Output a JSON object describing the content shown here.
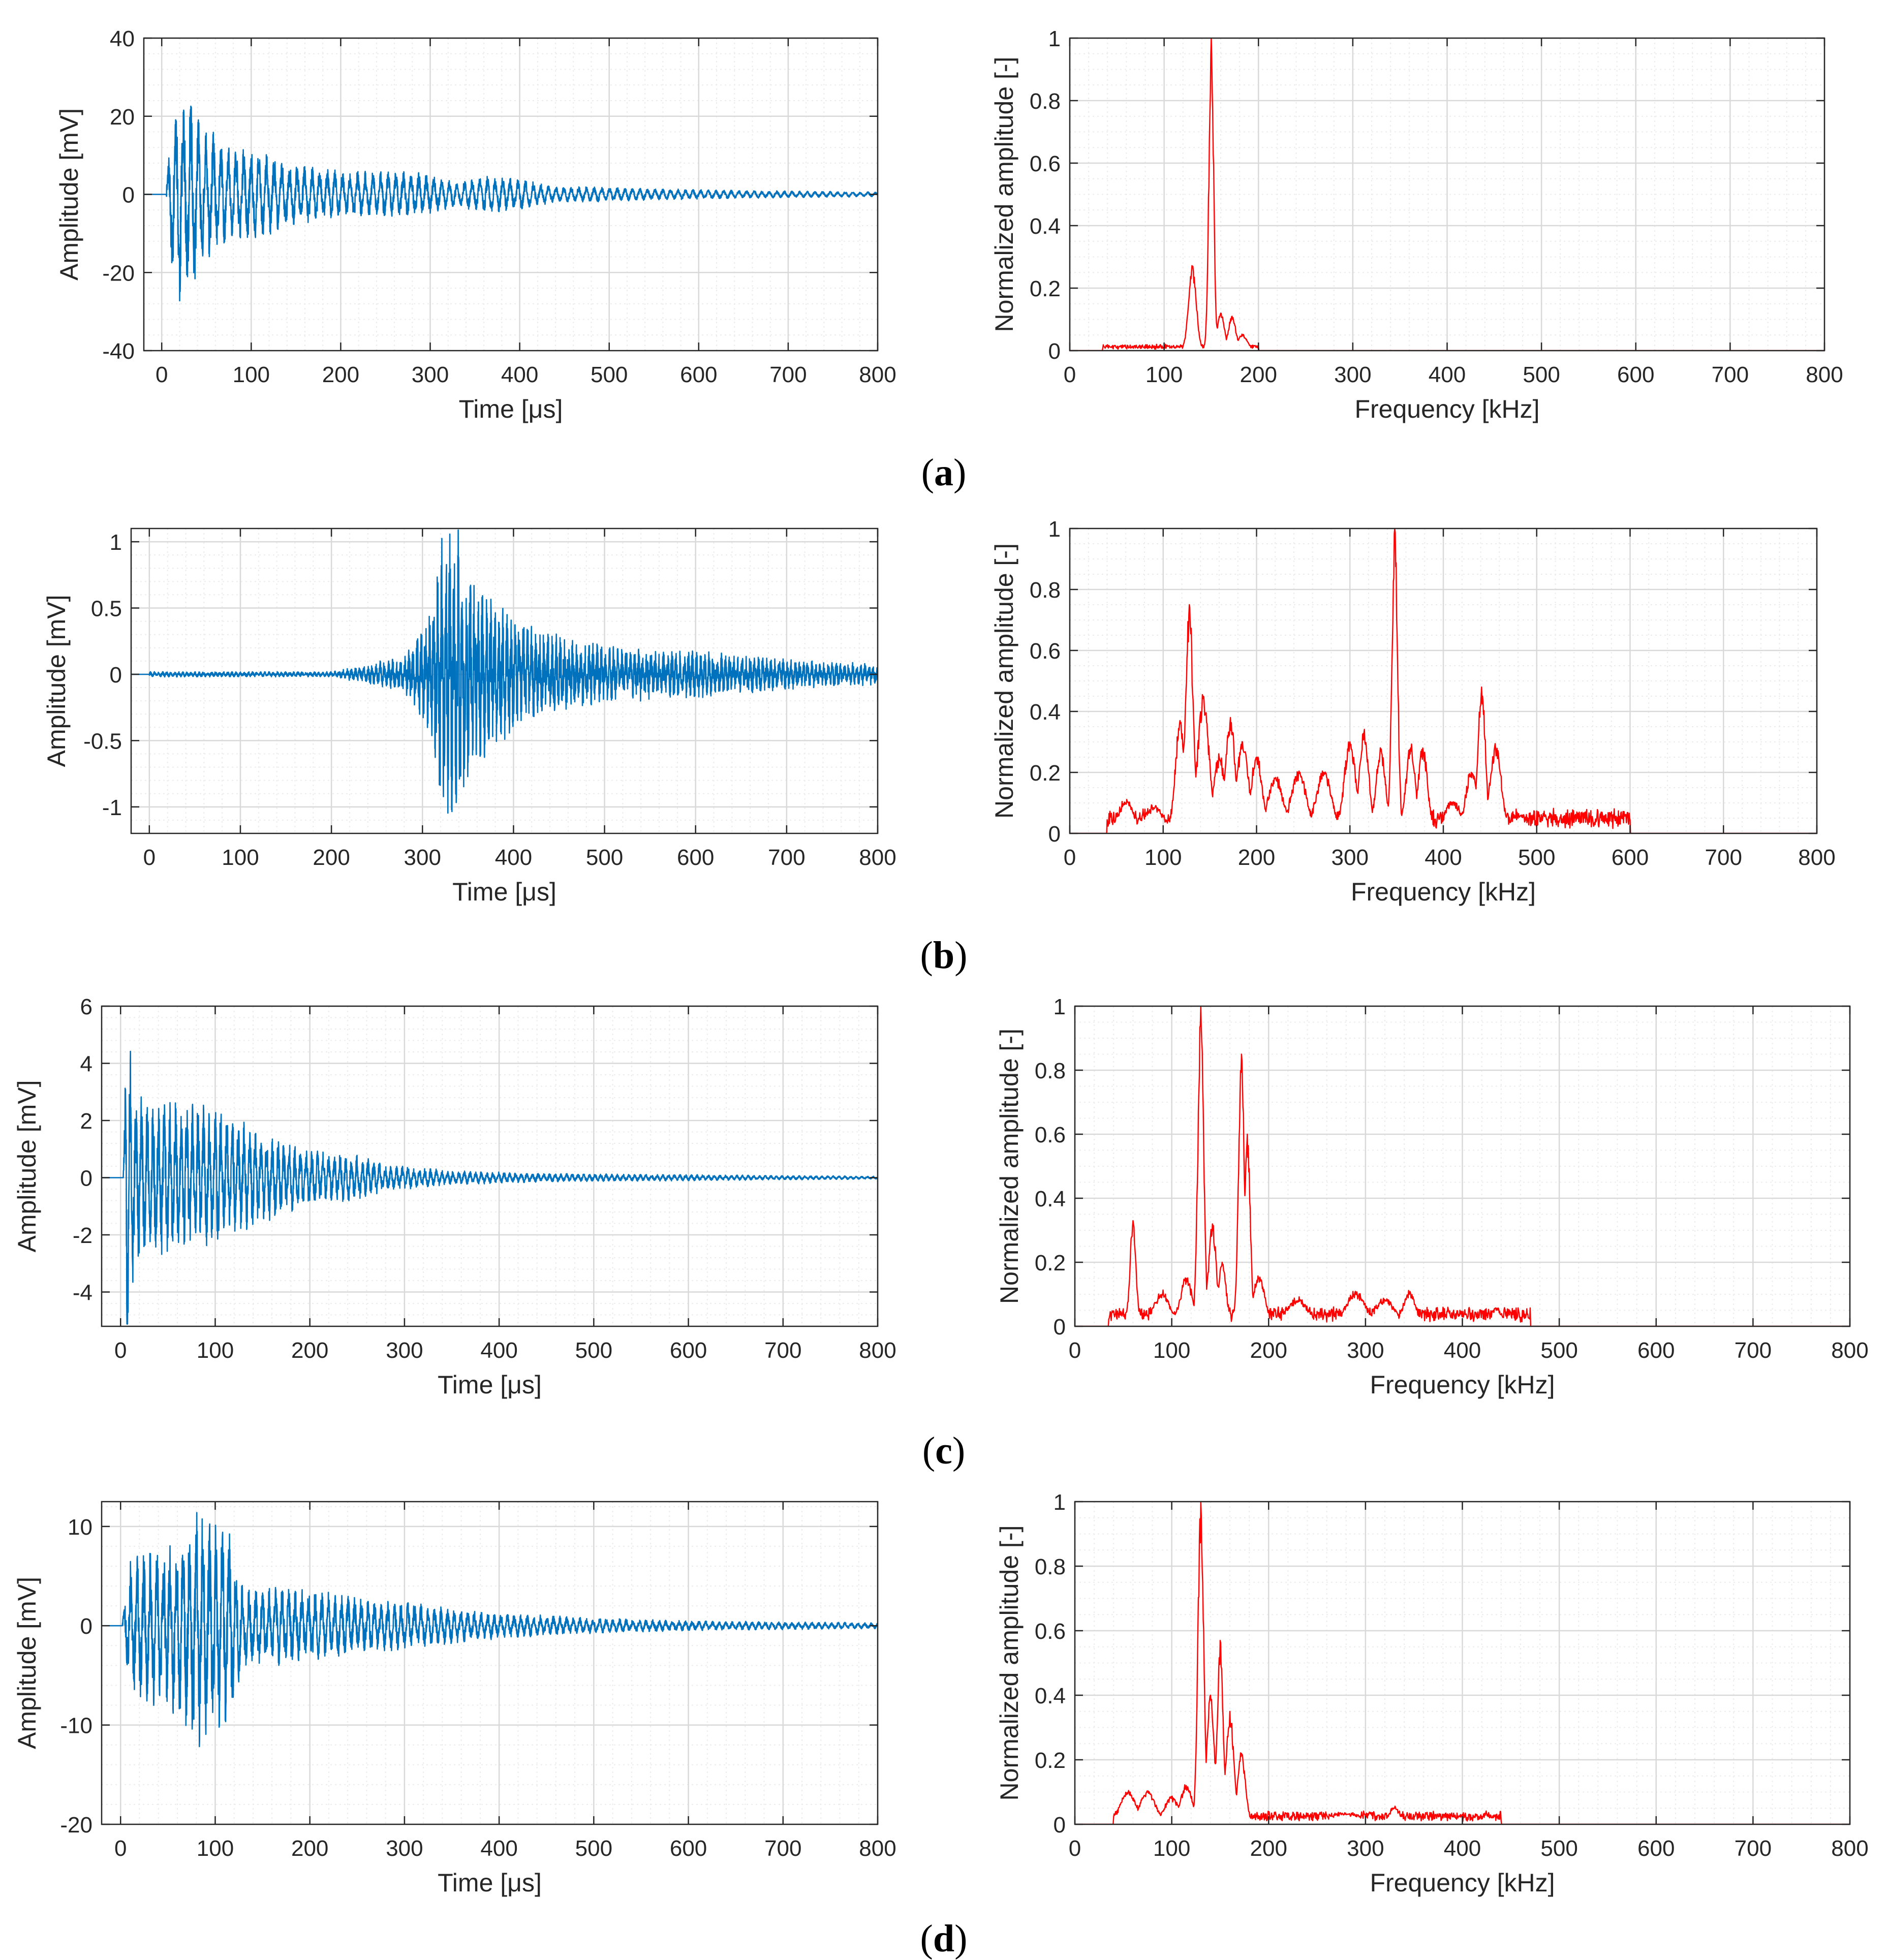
{
  "figure": {
    "colors": {
      "signal": "#0072BD",
      "spectrum": "#FF0000",
      "axis": "#262626",
      "grid_major": "#d9d9d9",
      "grid_minor": "#ececec"
    },
    "captions": [
      "a",
      "b",
      "c",
      "d"
    ]
  },
  "chart_data": [
    {
      "id": "a-time",
      "type": "line",
      "panel": "a",
      "side": "left",
      "xlabel": "Time [μs]",
      "ylabel": "Amplitude [mV]",
      "xlim": [
        -20,
        800
      ],
      "ylim": [
        -40,
        40
      ],
      "xticks": [
        0,
        100,
        200,
        300,
        400,
        500,
        600,
        700,
        800
      ],
      "yticks": [
        -40,
        -20,
        0,
        20,
        40
      ],
      "ytick_labels": [
        "-40",
        "-20",
        "0",
        "20",
        "40"
      ],
      "series": [
        {
          "name": "signal",
          "color": "#0072BD",
          "onset": 5,
          "period": 8.5,
          "noise": 0.35,
          "seed": 11,
          "envelope": [
            [
              0,
              0
            ],
            [
              5,
              3
            ],
            [
              12,
              22
            ],
            [
              20,
              29
            ],
            [
              30,
              27
            ],
            [
              45,
              18
            ],
            [
              70,
              14
            ],
            [
              100,
              12
            ],
            [
              150,
              8
            ],
            [
              200,
              6
            ],
            [
              250,
              6
            ],
            [
              280,
              6
            ],
            [
              300,
              5
            ],
            [
              330,
              3
            ],
            [
              360,
              5
            ],
            [
              400,
              4
            ],
            [
              440,
              2
            ],
            [
              480,
              2
            ],
            [
              550,
              1.5
            ],
            [
              650,
              1
            ],
            [
              800,
              0.6
            ]
          ]
        }
      ]
    },
    {
      "id": "a-freq",
      "type": "line",
      "panel": "a",
      "side": "right",
      "xlabel": "Frequency [kHz]",
      "ylabel": "Normalized amplitude [-]",
      "xlim": [
        0,
        800
      ],
      "ylim": [
        0,
        1
      ],
      "xticks": [
        0,
        100,
        200,
        300,
        400,
        500,
        600,
        700,
        800
      ],
      "yticks": [
        0,
        0.2,
        0.4,
        0.6,
        0.8,
        1
      ],
      "ytick_labels": [
        "0",
        "0.2",
        "0.4",
        "0.6",
        "0.8",
        "1"
      ],
      "series": [
        {
          "name": "spectrum",
          "color": "#FF0000",
          "band": [
            35,
            200
          ],
          "floor": 0.01,
          "seed": 21,
          "peaks": [
            [
              130,
              0.27,
              4
            ],
            [
              150,
              1.0,
              2.5
            ],
            [
              160,
              0.12,
              4
            ],
            [
              172,
              0.11,
              4
            ],
            [
              183,
              0.05,
              5
            ]
          ]
        }
      ]
    },
    {
      "id": "b-time",
      "type": "line",
      "panel": "b",
      "side": "left",
      "xlabel": "Time [μs]",
      "ylabel": "Amplitude [mV]",
      "xlim": [
        -20,
        800
      ],
      "ylim": [
        -1.2,
        1.1
      ],
      "xticks": [
        0,
        100,
        200,
        300,
        400,
        500,
        600,
        700,
        800
      ],
      "yticks": [
        -1,
        -0.5,
        0,
        0.5,
        1
      ],
      "ytick_labels": [
        "-1",
        "-0.5",
        "0",
        "0.5",
        "1"
      ],
      "series": [
        {
          "name": "signal",
          "color": "#0072BD",
          "onset": 0,
          "period": 4.5,
          "noise": 0.55,
          "seed": 31,
          "envelope": [
            [
              0,
              0.02
            ],
            [
              200,
              0.02
            ],
            [
              230,
              0.06
            ],
            [
              280,
              0.15
            ],
            [
              310,
              0.5
            ],
            [
              320,
              1.1
            ],
            [
              340,
              1.1
            ],
            [
              360,
              0.7
            ],
            [
              400,
              0.45
            ],
            [
              450,
              0.3
            ],
            [
              500,
              0.22
            ],
            [
              600,
              0.18
            ],
            [
              700,
              0.12
            ],
            [
              800,
              0.08
            ]
          ]
        }
      ]
    },
    {
      "id": "b-freq",
      "type": "line",
      "panel": "b",
      "side": "right",
      "xlabel": "Frequency [kHz]",
      "ylabel": "Normalized amplitude [-]",
      "xlim": [
        0,
        800
      ],
      "ylim": [
        0,
        1
      ],
      "xticks": [
        0,
        100,
        200,
        300,
        400,
        500,
        600,
        700,
        800
      ],
      "yticks": [
        0,
        0.2,
        0.4,
        0.6,
        0.8,
        1
      ],
      "ytick_labels": [
        "0",
        "0.2",
        "0.4",
        "0.6",
        "0.8",
        "1"
      ],
      "series": [
        {
          "name": "spectrum",
          "color": "#FF0000",
          "band": [
            40,
            600
          ],
          "floor": 0.04,
          "seed": 41,
          "peaks": [
            [
              60,
              0.1,
              8
            ],
            [
              90,
              0.08,
              10
            ],
            [
              118,
              0.37,
              5
            ],
            [
              128,
              0.75,
              4
            ],
            [
              143,
              0.45,
              6
            ],
            [
              160,
              0.25,
              6
            ],
            [
              172,
              0.38,
              5
            ],
            [
              185,
              0.3,
              6
            ],
            [
              200,
              0.25,
              6
            ],
            [
              220,
              0.18,
              8
            ],
            [
              245,
              0.2,
              8
            ],
            [
              272,
              0.2,
              8
            ],
            [
              300,
              0.3,
              6
            ],
            [
              315,
              0.33,
              5
            ],
            [
              333,
              0.27,
              5
            ],
            [
              348,
              1.0,
              3
            ],
            [
              365,
              0.28,
              5
            ],
            [
              378,
              0.28,
              5
            ],
            [
              410,
              0.1,
              8
            ],
            [
              430,
              0.2,
              6
            ],
            [
              441,
              0.48,
              4
            ],
            [
              456,
              0.28,
              6
            ],
            [
              480,
              0.05,
              10
            ]
          ]
        }
      ]
    },
    {
      "id": "c-time",
      "type": "line",
      "panel": "c",
      "side": "left",
      "xlabel": "Time [μs]",
      "ylabel": "Amplitude [mV]",
      "xlim": [
        -20,
        800
      ],
      "ylim": [
        -5.2,
        6
      ],
      "xticks": [
        0,
        100,
        200,
        300,
        400,
        500,
        600,
        700,
        800
      ],
      "yticks": [
        -4,
        -2,
        0,
        2,
        4,
        6
      ],
      "ytick_labels": [
        "-4",
        "-2",
        "0",
        "2",
        "4",
        "6"
      ],
      "series": [
        {
          "name": "signal",
          "color": "#0072BD",
          "onset": 3,
          "period": 6,
          "noise": 0.4,
          "seed": 51,
          "envelope": [
            [
              0,
              0
            ],
            [
              3,
              0.5
            ],
            [
              6,
              6
            ],
            [
              10,
              5
            ],
            [
              15,
              3
            ],
            [
              40,
              2.8
            ],
            [
              100,
              2.6
            ],
            [
              150,
              1.6
            ],
            [
              200,
              1.0
            ],
            [
              250,
              0.8
            ],
            [
              280,
              0.5
            ],
            [
              350,
              0.25
            ],
            [
              450,
              0.15
            ],
            [
              800,
              0.05
            ]
          ]
        }
      ]
    },
    {
      "id": "c-freq",
      "type": "line",
      "panel": "c",
      "side": "right",
      "xlabel": "Frequency [kHz]",
      "ylabel": "Normalized amplitude [-]",
      "xlim": [
        0,
        800
      ],
      "ylim": [
        0,
        1
      ],
      "xticks": [
        0,
        100,
        200,
        300,
        400,
        500,
        600,
        700,
        800
      ],
      "yticks": [
        0,
        0.2,
        0.4,
        0.6,
        0.8,
        1
      ],
      "ytick_labels": [
        "0",
        "0.2",
        "0.4",
        "0.6",
        "0.8",
        "1"
      ],
      "series": [
        {
          "name": "spectrum",
          "color": "#FF0000",
          "band": [
            35,
            470
          ],
          "floor": 0.03,
          "seed": 61,
          "peaks": [
            [
              60,
              0.33,
              3
            ],
            [
              90,
              0.1,
              8
            ],
            [
              115,
              0.15,
              6
            ],
            [
              130,
              1.0,
              3
            ],
            [
              142,
              0.32,
              4
            ],
            [
              152,
              0.2,
              4
            ],
            [
              172,
              0.85,
              3
            ],
            [
              178,
              0.6,
              3
            ],
            [
              190,
              0.15,
              6
            ],
            [
              230,
              0.08,
              10
            ],
            [
              290,
              0.1,
              10
            ],
            [
              320,
              0.08,
              10
            ],
            [
              345,
              0.1,
              6
            ],
            [
              400,
              0.03,
              10
            ],
            [
              435,
              0.05,
              5
            ]
          ]
        }
      ]
    },
    {
      "id": "d-time",
      "type": "line",
      "panel": "d",
      "side": "left",
      "xlabel": "Time [μs]",
      "ylabel": "Amplitude [mV]",
      "xlim": [
        -20,
        800
      ],
      "ylim": [
        -20,
        12.5
      ],
      "xticks": [
        0,
        100,
        200,
        300,
        400,
        500,
        600,
        700,
        800
      ],
      "yticks": [
        -20,
        -10,
        0,
        10
      ],
      "ytick_labels": [
        "-20",
        "-10",
        "0",
        "10"
      ],
      "series": [
        {
          "name": "signal",
          "color": "#0072BD",
          "onset": 2,
          "period": 7,
          "noise": 0.4,
          "seed": 71,
          "envelope": [
            [
              0,
              0
            ],
            [
              2,
              1
            ],
            [
              10,
              7
            ],
            [
              30,
              8
            ],
            [
              60,
              9
            ],
            [
              80,
              13
            ],
            [
              100,
              11
            ],
            [
              115,
              10
            ],
            [
              130,
              4
            ],
            [
              180,
              4
            ],
            [
              250,
              3
            ],
            [
              300,
              2.5
            ],
            [
              330,
              2
            ],
            [
              400,
              1.3
            ],
            [
              500,
              0.8
            ],
            [
              600,
              0.5
            ],
            [
              800,
              0.3
            ]
          ]
        }
      ]
    },
    {
      "id": "d-freq",
      "type": "line",
      "panel": "d",
      "side": "right",
      "xlabel": "Frequency [kHz]",
      "ylabel": "Normalized amplitude [-]",
      "xlim": [
        0,
        800
      ],
      "ylim": [
        0,
        1
      ],
      "xticks": [
        0,
        100,
        200,
        300,
        400,
        500,
        600,
        700,
        800
      ],
      "yticks": [
        0,
        0.2,
        0.4,
        0.6,
        0.8,
        1
      ],
      "ytick_labels": [
        "0",
        "0.2",
        "0.4",
        "0.6",
        "0.8",
        "1"
      ],
      "series": [
        {
          "name": "spectrum",
          "color": "#FF0000",
          "band": [
            40,
            440
          ],
          "floor": 0.02,
          "seed": 81,
          "peaks": [
            [
              55,
              0.1,
              8
            ],
            [
              75,
              0.1,
              8
            ],
            [
              100,
              0.08,
              8
            ],
            [
              115,
              0.12,
              6
            ],
            [
              130,
              1.0,
              3
            ],
            [
              140,
              0.4,
              4
            ],
            [
              150,
              0.57,
              3
            ],
            [
              160,
              0.35,
              4
            ],
            [
              172,
              0.22,
              4
            ],
            [
              280,
              0.03,
              15
            ],
            [
              330,
              0.05,
              5
            ]
          ]
        }
      ]
    }
  ]
}
